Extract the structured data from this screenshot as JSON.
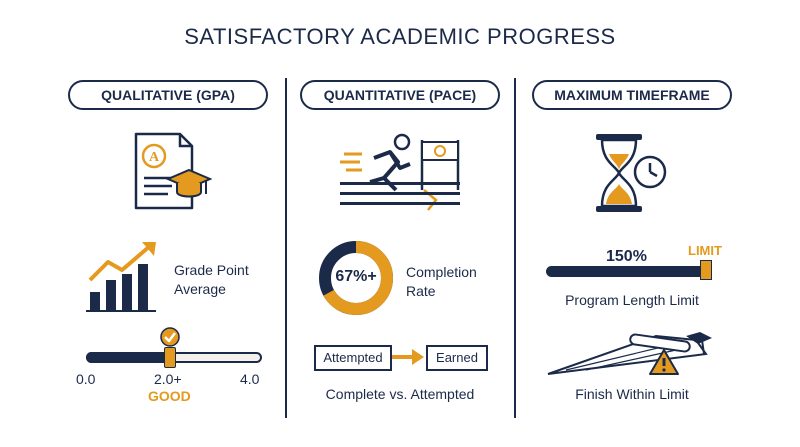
{
  "title": "SATISFACTORY ACADEMIC PROGRESS",
  "colors": {
    "navy": "#1c2a4a",
    "orange": "#e39a1e",
    "light": "#f4f1ec"
  },
  "columns": {
    "gpa": {
      "header": "QUALITATIVE (GPA)",
      "metric_line1": "Grade Point",
      "metric_line2": "Average",
      "scale_min": "0.0",
      "scale_mid": "2.0+",
      "scale_max": "4.0",
      "status": "GOOD",
      "threshold_fraction": 0.5,
      "icons": [
        "certificate-icon",
        "graduation-cap-icon",
        "growth-chart-icon",
        "checkmark-icon"
      ]
    },
    "pace": {
      "header": "QUANTITATIVE (PACE)",
      "donut_label": "67%+",
      "donut_fraction": 0.67,
      "metric_line1": "Completion",
      "metric_line2": "Rate",
      "flow_from": "Attempted",
      "flow_to": "Earned",
      "caption": "Complete vs. Attempted",
      "icons": [
        "runner-icon",
        "finish-flag-icon",
        "arrow-right-icon"
      ]
    },
    "timeframe": {
      "header": "MAXIMUM TIMEFRAME",
      "percent": "150%",
      "limit_tag": "LIMIT",
      "caption1": "Program Length Limit",
      "caption2": "Finish Within Limit",
      "icons": [
        "hourglass-icon",
        "clock-icon",
        "diploma-icon",
        "warning-icon"
      ]
    }
  }
}
